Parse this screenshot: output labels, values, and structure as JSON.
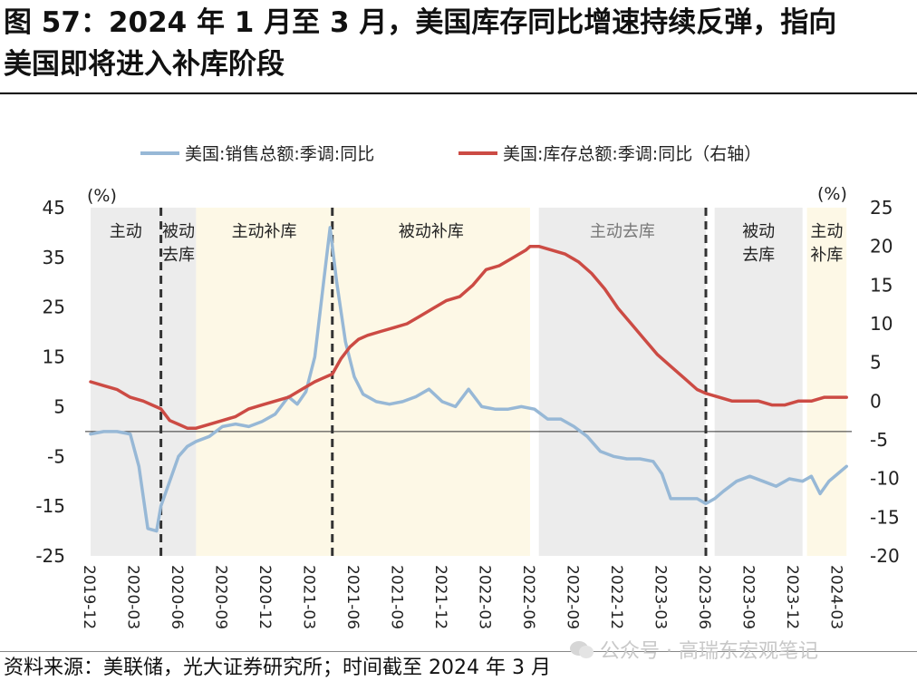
{
  "title_line1": "图 57：2024 年 1 月至 3 月，美国库存同比增速持续反弹，指向",
  "title_line2": "美国即将进入补库阶段",
  "source": "资料来源：美联储，光大证券研究所；时间截至 2024 年 3 月",
  "watermark": "公众号 · 高瑞东宏观笔记",
  "colors": {
    "sales": "#97b8d6",
    "inventory": "#cc4b44",
    "active_band": "#ececec",
    "passive_band": "#fdf8e6",
    "dash": "#333333"
  },
  "chart_data": {
    "type": "line",
    "left_unit": "(%)",
    "right_unit": "(%)",
    "ylim_left": [
      -25,
      45
    ],
    "ylim_right": [
      -20,
      25
    ],
    "left_ticks": [
      "45",
      "35",
      "25",
      "15",
      "5",
      "-5",
      "-15",
      "-25"
    ],
    "right_ticks": [
      "25",
      "20",
      "15",
      "10",
      "5",
      "0",
      "-5",
      "-10",
      "-15",
      "-20"
    ],
    "x_ticks": [
      "2019-12",
      "2020-03",
      "2020-06",
      "2020-09",
      "2020-12",
      "2021-03",
      "2021-06",
      "2021-09",
      "2021-12",
      "2022-03",
      "2022-06",
      "2022-09",
      "2022-12",
      "2023-03",
      "2023-06",
      "2023-09",
      "2023-12",
      "2024-03"
    ],
    "legend": [
      "美国:销售总额:季调:同比",
      "美国:库存总额:季调:同比（右轴）"
    ],
    "phases": [
      {
        "label1": "主动",
        "label2": "",
        "start": 0,
        "end": 1.6,
        "kind": "active"
      },
      {
        "label1": "被动",
        "label2": "去库",
        "start": 1.6,
        "end": 2.4,
        "kind": "active"
      },
      {
        "label1": "主动补库",
        "label2": "",
        "start": 2.4,
        "end": 5.5,
        "kind": "passive"
      },
      {
        "label1": "被动补库",
        "label2": "",
        "start": 5.5,
        "end": 10.0,
        "kind": "passive"
      },
      {
        "label1": "主动去库",
        "label2": "",
        "start": 10.2,
        "end": 14.0,
        "kind": "active"
      },
      {
        "label1": "被动",
        "label2": "去库",
        "start": 14.2,
        "end": 16.2,
        "kind": "active"
      },
      {
        "label1": "主动",
        "label2": "补库",
        "start": 16.3,
        "end": 17.2,
        "kind": "passive"
      }
    ],
    "dividers": [
      1.6,
      5.5,
      14.0
    ],
    "series": [
      {
        "name": "美国:销售总额:季调:同比",
        "axis": "left",
        "x": [
          0,
          0.3,
          0.6,
          0.9,
          1.1,
          1.3,
          1.5,
          1.6,
          1.8,
          2.0,
          2.2,
          2.4,
          2.7,
          3.0,
          3.3,
          3.6,
          3.9,
          4.2,
          4.5,
          4.7,
          4.9,
          5.1,
          5.3,
          5.45,
          5.6,
          5.8,
          6.0,
          6.2,
          6.5,
          6.8,
          7.1,
          7.4,
          7.7,
          8.0,
          8.3,
          8.6,
          8.9,
          9.2,
          9.5,
          9.8,
          10.1,
          10.4,
          10.7,
          11.0,
          11.3,
          11.6,
          11.9,
          12.2,
          12.5,
          12.8,
          13.0,
          13.2,
          13.5,
          13.8,
          14.0,
          14.2,
          14.4,
          14.7,
          15.0,
          15.3,
          15.6,
          15.9,
          16.2,
          16.4,
          16.6,
          16.8,
          17.0,
          17.2
        ],
        "values": [
          -0.5,
          0.0,
          0.0,
          -0.5,
          -7,
          -19.5,
          -20,
          -15,
          -10,
          -5,
          -3,
          -2,
          -1,
          1,
          1.5,
          1,
          2,
          3.5,
          7,
          5.5,
          8,
          15,
          30,
          41,
          30,
          18,
          11,
          7.5,
          6,
          5.5,
          6,
          7,
          8.5,
          6,
          5,
          8.5,
          5,
          4.5,
          4.5,
          5,
          4.5,
          2.5,
          2.5,
          1,
          -1,
          -4,
          -5,
          -5.5,
          -5.5,
          -6,
          -8.5,
          -13.5,
          -13.5,
          -13.5,
          -14.5,
          -13.5,
          -12,
          -10,
          -9,
          -10,
          -11,
          -9.5,
          -10,
          -9,
          -12.5,
          -10,
          -8.5,
          -7
        ]
      },
      {
        "name": "美国:库存总额:季调:同比（右轴）",
        "axis": "right",
        "x": [
          0,
          0.3,
          0.6,
          0.9,
          1.2,
          1.4,
          1.6,
          1.8,
          2.0,
          2.2,
          2.4,
          2.7,
          3.0,
          3.3,
          3.6,
          3.9,
          4.2,
          4.5,
          4.8,
          5.1,
          5.3,
          5.5,
          5.7,
          5.9,
          6.1,
          6.3,
          6.6,
          6.9,
          7.2,
          7.5,
          7.8,
          8.1,
          8.4,
          8.7,
          9.0,
          9.3,
          9.6,
          9.9,
          10.0,
          10.2,
          10.5,
          10.8,
          11.1,
          11.4,
          11.7,
          12.0,
          12.3,
          12.6,
          12.9,
          13.2,
          13.5,
          13.8,
          14.0,
          14.3,
          14.6,
          14.9,
          15.2,
          15.5,
          15.8,
          16.1,
          16.4,
          16.7,
          17.0,
          17.2
        ],
        "values": [
          2.5,
          2,
          1.5,
          0.5,
          0,
          -0.5,
          -1,
          -2.5,
          -3,
          -3.5,
          -3.5,
          -3,
          -2.5,
          -2,
          -1,
          -0.5,
          0,
          0.5,
          1.5,
          2.5,
          3,
          3.5,
          5.5,
          7,
          8,
          8.5,
          9,
          9.5,
          10,
          11,
          12,
          13,
          13.5,
          15,
          17,
          17.5,
          18.5,
          19.5,
          20,
          20,
          19.5,
          19,
          18,
          16.5,
          14.5,
          12,
          10,
          8,
          6,
          4.5,
          3,
          1.5,
          1,
          0.5,
          0,
          0,
          0,
          -0.5,
          -0.5,
          0,
          0,
          0.5,
          0.5,
          0.5
        ]
      }
    ]
  }
}
